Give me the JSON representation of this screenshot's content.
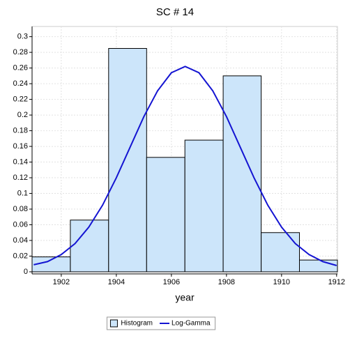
{
  "chart_data": {
    "type": "histogram",
    "title": "SC # 14",
    "xlabel": "year",
    "xlim": [
      1900.94,
      1912.03
    ],
    "ylim": [
      0,
      0.313
    ],
    "xticks": [
      1902,
      1904,
      1906,
      1908,
      1910,
      1912
    ],
    "yticks": [
      0,
      0.02,
      0.04,
      0.06,
      0.08,
      0.1,
      0.12,
      0.14,
      0.16,
      0.18,
      0.2,
      0.22,
      0.24,
      0.26,
      0.28,
      0.3
    ],
    "grid": true,
    "legend": "bottom",
    "series": [
      {
        "name": "Histogram",
        "type": "histogram",
        "color": "#cce5fa",
        "bins": [
          1900.94,
          1902.33,
          1903.72,
          1905.1,
          1906.49,
          1907.88,
          1909.26,
          1910.65,
          1912.03
        ],
        "values": [
          0.019,
          0.066,
          0.285,
          0.146,
          0.168,
          0.25,
          0.05,
          0.015
        ]
      },
      {
        "name": "Log-Gamma",
        "type": "line",
        "color": "#1414d2",
        "x": [
          1901,
          1901.5,
          1902,
          1902.5,
          1903,
          1903.5,
          1904,
          1904.5,
          1905,
          1905.5,
          1906,
          1906.5,
          1907,
          1907.5,
          1908,
          1908.5,
          1909,
          1909.5,
          1910,
          1910.5,
          1911,
          1911.5,
          1912
        ],
        "values": [
          0.009,
          0.013,
          0.022,
          0.036,
          0.057,
          0.085,
          0.12,
          0.159,
          0.198,
          0.231,
          0.254,
          0.262,
          0.254,
          0.231,
          0.198,
          0.159,
          0.12,
          0.085,
          0.057,
          0.036,
          0.022,
          0.013,
          0.008
        ]
      }
    ]
  }
}
